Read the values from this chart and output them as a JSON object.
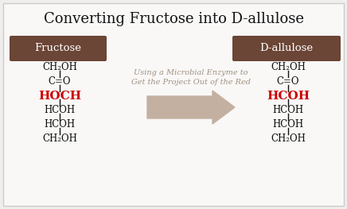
{
  "title": "Converting Fructose into D-allulose",
  "title_fontsize": 13,
  "background_color": "#f0eeec",
  "inner_background_color": "#f8f6f4",
  "box_color": "#6b4535",
  "box_text_color": "#ffffff",
  "fructose_label": "Fructose",
  "dallulose_label": "D-allulose",
  "arrow_color": "#c4b0a0",
  "middle_text_line1": "Using a Microbial Enzyme to",
  "middle_text_line2": "Get the Project Out of the Red",
  "middle_text_color": "#a09080",
  "black_color": "#111111",
  "red_color": "#cc0000",
  "fructose_lines": [
    {
      "text": "CH₂OH",
      "color": "#111111",
      "bold": false,
      "size": 8.5,
      "subscript": true
    },
    {
      "text": "C=O",
      "color": "#111111",
      "bold": false,
      "size": 8.5
    },
    {
      "text": "HOCH",
      "color": "#cc0000",
      "bold": true,
      "size": 11
    },
    {
      "text": "HCOH",
      "color": "#111111",
      "bold": false,
      "size": 8.5
    },
    {
      "text": "HCOH",
      "color": "#111111",
      "bold": false,
      "size": 8.5
    },
    {
      "text": "CH₂OH",
      "color": "#111111",
      "bold": false,
      "size": 8.5
    }
  ],
  "dallulose_lines": [
    {
      "text": "CH₂OH",
      "color": "#111111",
      "bold": false,
      "size": 8.5
    },
    {
      "text": "C=O",
      "color": "#111111",
      "bold": false,
      "size": 8.5
    },
    {
      "text": "HCOH",
      "color": "#cc0000",
      "bold": true,
      "size": 11
    },
    {
      "text": "HCOH",
      "color": "#111111",
      "bold": false,
      "size": 8.5
    },
    {
      "text": "HCOH",
      "color": "#111111",
      "bold": false,
      "size": 8.5
    },
    {
      "text": "CH₂OH",
      "color": "#111111",
      "bold": false,
      "size": 8.5
    }
  ]
}
